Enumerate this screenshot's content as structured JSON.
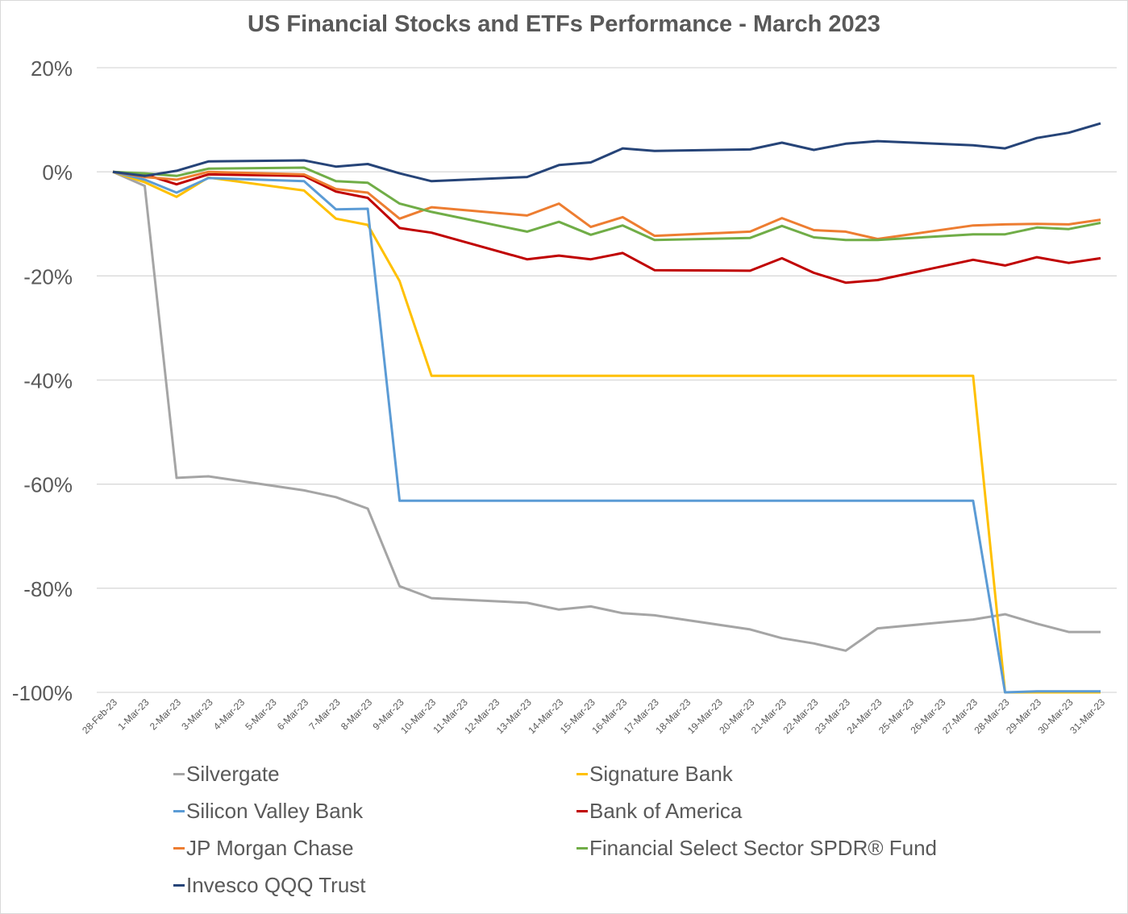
{
  "chart_data": {
    "type": "line",
    "title": "US Financial Stocks and ETFs Performance - March 2023",
    "xlabel": "",
    "ylabel": "",
    "ylim": [
      -100,
      20
    ],
    "y_ticks": [
      20,
      0,
      -20,
      -40,
      -60,
      -80,
      -100
    ],
    "y_tick_labels": [
      "20%",
      "0%",
      "-20%",
      "-40%",
      "-60%",
      "-80%",
      "-100%"
    ],
    "grid": true,
    "legend_position": "bottom",
    "categories": [
      "28-Feb-23",
      "1-Mar-23",
      "2-Mar-23",
      "3-Mar-23",
      "4-Mar-23",
      "5-Mar-23",
      "6-Mar-23",
      "7-Mar-23",
      "8-Mar-23",
      "9-Mar-23",
      "10-Mar-23",
      "11-Mar-23",
      "12-Mar-23",
      "13-Mar-23",
      "14-Mar-23",
      "15-Mar-23",
      "16-Mar-23",
      "17-Mar-23",
      "18-Mar-23",
      "19-Mar-23",
      "20-Mar-23",
      "21-Mar-23",
      "22-Mar-23",
      "23-Mar-23",
      "24-Mar-23",
      "25-Mar-23",
      "26-Mar-23",
      "27-Mar-23",
      "28-Mar-23",
      "29-Mar-23",
      "30-Mar-23",
      "31-Mar-23"
    ],
    "series": [
      {
        "name": "Silvergate",
        "color": "#a5a5a5",
        "values": [
          0,
          -2.7,
          -58.8,
          -58.5,
          null,
          null,
          -61.2,
          -62.5,
          -64.7,
          -79.6,
          -81.9,
          null,
          null,
          -82.8,
          -84.1,
          -83.5,
          -84.8,
          -85.2,
          null,
          null,
          -87.9,
          -89.6,
          -90.6,
          -92.0,
          -87.7,
          null,
          null,
          -86.0,
          -85.0,
          -86.8,
          -88.4,
          -88.4
        ]
      },
      {
        "name": "Signature Bank",
        "color": "#ffc000",
        "values": [
          0,
          -2.0,
          -4.8,
          -1.1,
          null,
          null,
          -3.6,
          -9.0,
          -10.2,
          -21.0,
          -39.2,
          null,
          null,
          -39.2,
          -39.2,
          -39.2,
          -39.2,
          -39.2,
          null,
          null,
          -39.2,
          -39.2,
          -39.2,
          -39.2,
          -39.2,
          null,
          null,
          -39.2,
          -100,
          -100,
          -100,
          -100
        ]
      },
      {
        "name": "Silicon Valley Bank",
        "color": "#5b9bd5",
        "values": [
          0,
          -1.5,
          -4.0,
          -1.2,
          null,
          null,
          -1.8,
          -7.2,
          -7.1,
          -63.2,
          -63.2,
          null,
          null,
          -63.2,
          -63.2,
          -63.2,
          -63.2,
          -63.2,
          null,
          null,
          -63.2,
          -63.2,
          -63.2,
          -63.2,
          -63.2,
          null,
          null,
          -63.2,
          -100,
          -99.8,
          -99.8,
          -99.8
        ]
      },
      {
        "name": "Bank of America",
        "color": "#c00000",
        "values": [
          0,
          -0.5,
          -2.4,
          -0.5,
          null,
          null,
          -0.8,
          -3.8,
          -5.0,
          -10.8,
          -11.7,
          null,
          null,
          -16.8,
          -16.1,
          -16.8,
          -15.6,
          -18.9,
          null,
          null,
          -19.0,
          -16.6,
          -19.4,
          -21.3,
          -20.8,
          null,
          null,
          -16.9,
          -18.0,
          -16.4,
          -17.5,
          -16.6
        ]
      },
      {
        "name": "JP Morgan Chase",
        "color": "#ed7d31",
        "values": [
          0,
          -1.0,
          -1.5,
          0,
          null,
          null,
          -0.5,
          -3.3,
          -4.0,
          -9.0,
          -6.8,
          null,
          null,
          -8.4,
          -6.1,
          -10.6,
          -8.7,
          -12.3,
          null,
          null,
          -11.5,
          -8.9,
          -11.2,
          -11.5,
          -12.9,
          null,
          null,
          -10.3,
          -10.1,
          -10.0,
          -10.1,
          -9.2
        ]
      },
      {
        "name": "Financial Select Sector SPDR® Fund",
        "color": "#70ad47",
        "values": [
          0,
          -0.3,
          -0.8,
          0.6,
          null,
          null,
          0.8,
          -1.8,
          -2.1,
          -6.1,
          -7.7,
          null,
          null,
          -11.5,
          -9.6,
          -12.1,
          -10.3,
          -13.1,
          null,
          null,
          -12.7,
          -10.4,
          -12.6,
          -13.1,
          -13.1,
          null,
          null,
          -12.0,
          -12.0,
          -10.7,
          -11.0,
          -9.8
        ]
      },
      {
        "name": "Invesco QQQ Trust",
        "color": "#264478",
        "values": [
          0,
          -0.8,
          0.2,
          2.0,
          null,
          null,
          2.2,
          1.0,
          1.5,
          -0.3,
          -1.8,
          null,
          null,
          -1.0,
          1.3,
          1.8,
          4.5,
          4.0,
          null,
          null,
          4.3,
          5.6,
          4.2,
          5.4,
          5.9,
          null,
          null,
          5.1,
          4.5,
          6.5,
          7.5,
          9.3
        ]
      }
    ]
  }
}
